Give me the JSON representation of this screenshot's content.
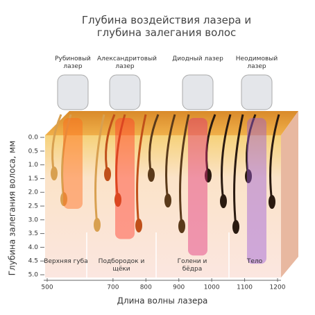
{
  "chart_data": {
    "type": "depth",
    "title": "Глубина воздействия лазера и глубина залегания волос",
    "xlabel": "Длина волны лазера",
    "ylabel": "Глубина залегания волоса, мм",
    "xlim": [
      500,
      1200
    ],
    "xticks": [
      500,
      700,
      800,
      900,
      1000,
      1100,
      1200
    ],
    "ylim": [
      0,
      5
    ],
    "yticks": [
      {
        "value": 0,
        "label": "0.0"
      },
      {
        "value": 0.5,
        "label": "0.5"
      },
      {
        "value": 1,
        "label": "1.0"
      },
      {
        "value": 1.5,
        "label": "1.5"
      },
      {
        "value": 2,
        "label": "2.0"
      },
      {
        "value": 2.5,
        "label": "2.5"
      },
      {
        "value": 3,
        "label": "3.0"
      },
      {
        "value": 3.5,
        "label": "3.5"
      },
      {
        "value": 4,
        "label": "4.0"
      },
      {
        "value": 4.5,
        "label": "4.5"
      },
      {
        "value": 5,
        "label": "5.0"
      }
    ],
    "lasers": [
      {
        "name": "Рубиновый лазер",
        "depth": 2.6,
        "color": "#ff6a1a"
      },
      {
        "name": "Александритовый лазер",
        "depth": 3.7,
        "color": "#ff3a2a"
      },
      {
        "name": "Диодный лазер",
        "depth": 4.3,
        "color": "#e0307a"
      },
      {
        "name": "Неодимовый лазер",
        "depth": 4.6,
        "color": "#9a5ad8"
      }
    ],
    "zones": [
      "Верхняя губа",
      "Подбородок и щёки",
      "Голени и бёдра",
      "Тело"
    ]
  }
}
